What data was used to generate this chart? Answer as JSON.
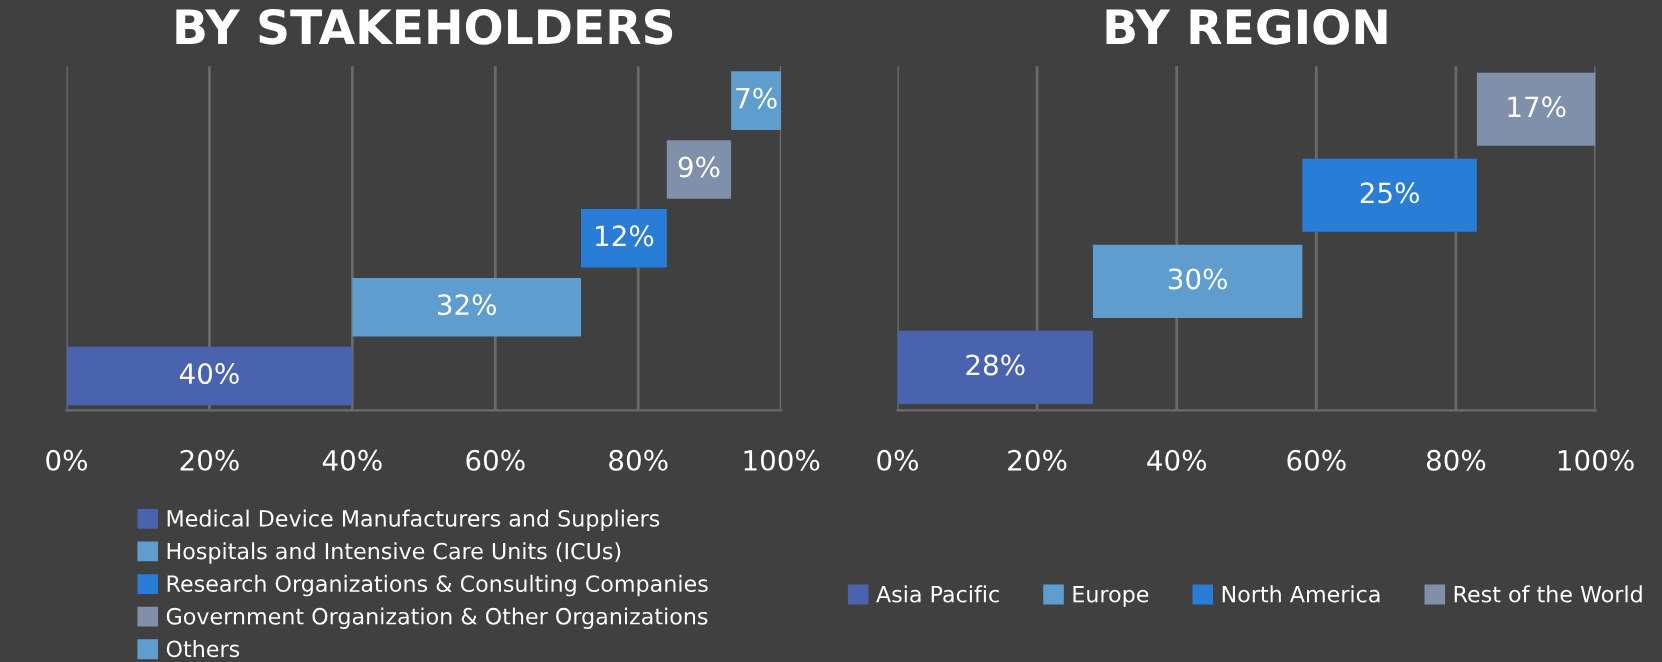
{
  "chart_data": [
    {
      "type": "bar",
      "title": "BY STAKEHOLDERS",
      "orientation": "horizontal",
      "categories": [
        null,
        null,
        null,
        null,
        null
      ],
      "series": [
        {
          "name": "Medical Device Manufacturers and Suppliers",
          "color": "#4a63ae",
          "values": [
            null,
            null,
            null,
            null,
            40
          ],
          "base": [
            null,
            null,
            null,
            null,
            0
          ],
          "value_labels": [
            null,
            null,
            null,
            null,
            "40%"
          ]
        },
        {
          "name": "Hospitals and Intensive Care Units (ICUs)",
          "color": "#5e9dce",
          "values": [
            null,
            null,
            null,
            32,
            null
          ],
          "base": [
            null,
            null,
            null,
            40,
            null
          ],
          "value_labels": [
            null,
            null,
            null,
            "32%",
            null
          ]
        },
        {
          "name": "Research Organizations & Consulting Companies",
          "color": "#2a7dd6",
          "values": [
            null,
            null,
            12,
            null,
            null
          ],
          "base": [
            null,
            null,
            72,
            null,
            null
          ],
          "value_labels": [
            null,
            null,
            "12%",
            null,
            null
          ]
        },
        {
          "name": "Government Organization & Other Organizations",
          "color": "#8090aa",
          "values": [
            null,
            9,
            null,
            null,
            null
          ],
          "base": [
            null,
            84,
            null,
            null,
            null
          ],
          "value_labels": [
            null,
            "9%",
            null,
            null,
            null
          ]
        },
        {
          "name": "Others",
          "color": "#5e9dce",
          "values": [
            7,
            null,
            null,
            null,
            null
          ],
          "base": [
            93,
            null,
            null,
            null,
            null
          ],
          "value_labels": [
            "7%",
            null,
            null,
            null,
            null
          ]
        }
      ],
      "xlim": [
        0,
        100
      ],
      "xticks": [
        {
          "value": 0,
          "label": "0%"
        },
        {
          "value": 20,
          "label": "20%"
        },
        {
          "value": 40,
          "label": "40%"
        },
        {
          "value": 60,
          "label": "60%"
        },
        {
          "value": 80,
          "label": "80%"
        },
        {
          "value": 100,
          "label": "100%"
        }
      ],
      "grid": "x",
      "legend": "bottom",
      "tick_labels": "x"
    },
    {
      "type": "bar",
      "title": "BY REGION",
      "orientation": "horizontal",
      "categories": [
        null,
        null,
        null,
        null
      ],
      "series": [
        {
          "name": "Asia Pacific",
          "color": "#4a63ae",
          "values": [
            null,
            null,
            null,
            28
          ],
          "base": [
            null,
            null,
            null,
            0
          ],
          "value_labels": [
            null,
            null,
            null,
            "28%"
          ]
        },
        {
          "name": "Europe",
          "color": "#5e9dce",
          "values": [
            null,
            null,
            30,
            null
          ],
          "base": [
            null,
            null,
            28,
            null
          ],
          "value_labels": [
            null,
            null,
            "30%",
            null
          ]
        },
        {
          "name": "North America",
          "color": "#2a7dd6",
          "values": [
            null,
            25,
            null,
            null
          ],
          "base": [
            null,
            58,
            null,
            null
          ],
          "value_labels": [
            null,
            "25%",
            null,
            null
          ]
        },
        {
          "name": "Rest of the World",
          "color": "#8090aa",
          "values": [
            17,
            null,
            null,
            null
          ],
          "base": [
            83,
            null,
            null,
            null
          ],
          "value_labels": [
            "17%",
            null,
            null,
            null
          ]
        }
      ],
      "xlim": [
        0,
        100
      ],
      "xticks": [
        {
          "value": 0,
          "label": "0%"
        },
        {
          "value": 20,
          "label": "20%"
        },
        {
          "value": 40,
          "label": "40%"
        },
        {
          "value": 60,
          "label": "60%"
        },
        {
          "value": 80,
          "label": "80%"
        },
        {
          "value": 100,
          "label": "100%"
        }
      ],
      "grid": "x",
      "legend": "bottom",
      "tick_labels": "x"
    }
  ]
}
